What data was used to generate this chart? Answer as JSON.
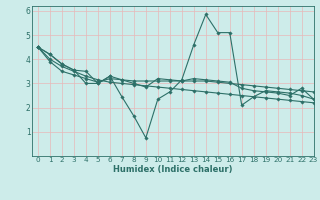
{
  "title": "",
  "xlabel": "Humidex (Indice chaleur)",
  "ylabel": "",
  "xlim": [
    -0.5,
    23
  ],
  "ylim": [
    0,
    6.2
  ],
  "xticks": [
    0,
    1,
    2,
    3,
    4,
    5,
    6,
    7,
    8,
    9,
    10,
    11,
    12,
    13,
    14,
    15,
    16,
    17,
    18,
    19,
    20,
    21,
    22,
    23
  ],
  "yticks": [
    1,
    2,
    3,
    4,
    5,
    6
  ],
  "background_color": "#cdecea",
  "line_color": "#2d7068",
  "grid_color": "#e8b8b8",
  "series": [
    [
      4.5,
      4.2,
      3.8,
      3.55,
      3.5,
      3.0,
      3.3,
      2.45,
      1.65,
      0.75,
      2.35,
      2.65,
      3.15,
      4.6,
      5.85,
      5.1,
      5.1,
      2.1,
      2.45,
      2.7,
      2.65,
      2.6,
      2.5,
      2.35
    ],
    [
      4.5,
      3.9,
      3.5,
      3.35,
      3.2,
      3.05,
      3.2,
      3.15,
      3.1,
      3.1,
      3.1,
      3.1,
      3.1,
      3.1,
      3.1,
      3.05,
      3.0,
      2.95,
      2.9,
      2.85,
      2.8,
      2.75,
      2.7,
      2.65
    ],
    [
      4.5,
      4.0,
      3.7,
      3.5,
      3.3,
      3.15,
      3.05,
      3.0,
      2.95,
      2.9,
      2.85,
      2.8,
      2.75,
      2.7,
      2.65,
      2.6,
      2.55,
      2.5,
      2.45,
      2.4,
      2.35,
      2.3,
      2.25,
      2.2
    ],
    [
      4.5,
      4.2,
      3.8,
      3.55,
      3.0,
      3.0,
      3.3,
      3.15,
      3.0,
      2.85,
      3.2,
      3.15,
      3.1,
      3.2,
      3.15,
      3.1,
      3.05,
      2.8,
      2.7,
      2.65,
      2.6,
      2.5,
      2.8,
      2.35
    ]
  ],
  "xlabel_fontsize": 6.0,
  "tick_fontsize": 5.2,
  "linewidth": 0.8,
  "markersize": 1.8
}
